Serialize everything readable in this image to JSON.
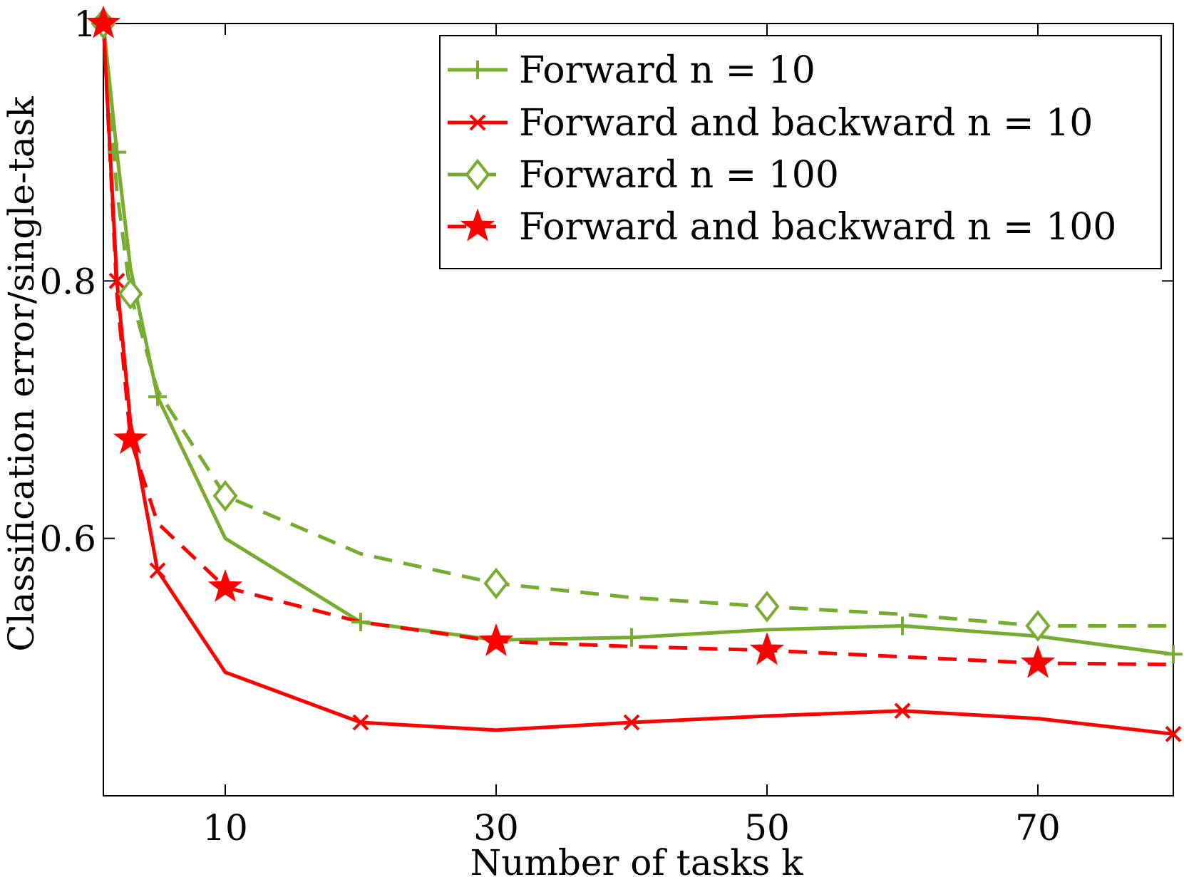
{
  "chart_data": {
    "type": "line",
    "title": "",
    "xlabel": "Number of tasks k",
    "ylabel": "Classification error/single-task",
    "xlim": [
      1,
      80
    ],
    "ylim": [
      0.4,
      1.0
    ],
    "xticks": [
      10,
      30,
      50,
      70
    ],
    "xtick_labels": [
      "10",
      "30",
      "50",
      "70"
    ],
    "yticks": [
      0.6,
      0.8,
      1.0
    ],
    "ytick_labels": [
      "0.6",
      "0.8",
      "1"
    ],
    "grid": false,
    "legend_position": "top-right",
    "series": [
      {
        "name": "Forward n = 10",
        "legend_label": "Forward n = 10",
        "color": "#77ac30",
        "line_style": "solid",
        "marker": "plus",
        "x": [
          1,
          2,
          3,
          5,
          10,
          20,
          30,
          40,
          50,
          60,
          70,
          80
        ],
        "y": [
          1.0,
          0.9,
          0.81,
          0.71,
          0.6,
          0.535,
          0.521,
          0.523,
          0.529,
          0.532,
          0.524,
          0.51
        ],
        "marker_x": [
          1,
          2,
          5,
          20,
          40,
          60,
          80
        ],
        "marker_y": [
          1.0,
          0.9,
          0.71,
          0.535,
          0.523,
          0.532,
          0.51
        ]
      },
      {
        "name": "Forward and backward n = 10",
        "legend_label": "Forward and backward n = 10",
        "color": "#ff0000",
        "line_style": "solid",
        "marker": "x",
        "x": [
          1,
          2,
          3,
          5,
          10,
          20,
          30,
          40,
          50,
          60,
          70,
          80
        ],
        "y": [
          1.0,
          0.8,
          0.69,
          0.575,
          0.496,
          0.457,
          0.451,
          0.457,
          0.462,
          0.466,
          0.46,
          0.448
        ],
        "marker_x": [
          1,
          2,
          5,
          20,
          40,
          60,
          80
        ],
        "marker_y": [
          1.0,
          0.8,
          0.575,
          0.457,
          0.457,
          0.466,
          0.448
        ]
      },
      {
        "name": "Forward n = 100",
        "legend_label": "Forward n = 100",
        "color": "#77ac30",
        "line_style": "dashed",
        "marker": "diamond",
        "x": [
          1,
          2,
          3,
          5,
          10,
          20,
          30,
          40,
          50,
          60,
          70,
          80
        ],
        "y": [
          1.0,
          0.87,
          0.79,
          0.715,
          0.633,
          0.588,
          0.565,
          0.554,
          0.547,
          0.541,
          0.532,
          0.532
        ],
        "marker_x": [
          1,
          3,
          10,
          30,
          50,
          70
        ],
        "marker_y": [
          1.0,
          0.79,
          0.633,
          0.565,
          0.547,
          0.532
        ]
      },
      {
        "name": "Forward and backward n = 100",
        "legend_label": "Forward and backward n = 100",
        "color": "#ff0000",
        "line_style": "dashed",
        "marker": "star",
        "x": [
          1,
          2,
          3,
          5,
          10,
          20,
          30,
          40,
          50,
          60,
          70,
          80
        ],
        "y": [
          1.0,
          0.79,
          0.677,
          0.612,
          0.562,
          0.535,
          0.52,
          0.516,
          0.513,
          0.508,
          0.503,
          0.502
        ],
        "marker_x": [
          1,
          3,
          10,
          30,
          50,
          70
        ],
        "marker_y": [
          1.0,
          0.677,
          0.562,
          0.52,
          0.513,
          0.503
        ]
      }
    ]
  }
}
